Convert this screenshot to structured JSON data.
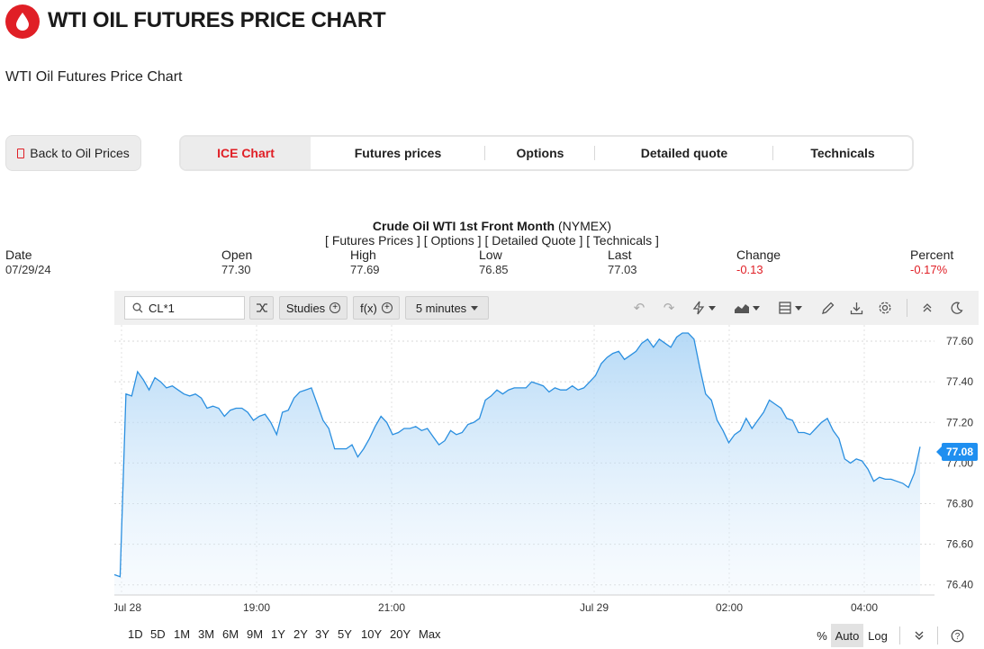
{
  "header": {
    "title": "WTI OIL FUTURES PRICE CHART",
    "subtitle": "WTI Oil Futures Price Chart",
    "logo_icon": "oil-drop-icon",
    "brand_color": "#e01f26"
  },
  "nav": {
    "back_label": "Back to Oil Prices",
    "tabs": [
      {
        "label": "ICE Chart",
        "active": true
      },
      {
        "label": "Futures prices",
        "active": false
      },
      {
        "label": "Options",
        "active": false
      },
      {
        "label": "Detailed quote",
        "active": false
      },
      {
        "label": "Technicals",
        "active": false
      }
    ]
  },
  "quote": {
    "title_bold": "Crude Oil WTI 1st Front Month",
    "title_exchange": "(NYMEX)",
    "links": "[ Futures Prices ] [ Options ] [ Detailed Quote ] [ Technicals ]",
    "labels": {
      "date": "Date",
      "open": "Open",
      "high": "High",
      "low": "Low",
      "last": "Last",
      "change": "Change",
      "percent": "Percent"
    },
    "values": {
      "date": "07/29/24",
      "open": "77.30",
      "high": "77.69",
      "low": "76.85",
      "last": "77.03",
      "change": "-0.13",
      "percent": "-0.17%"
    }
  },
  "toolbar": {
    "symbol": "CL*1",
    "studies_label": "Studies",
    "fx_label": "f(x)",
    "interval_label": "5 minutes",
    "icons": [
      "search-icon",
      "shuffle-icon",
      "undo-icon",
      "redo-icon",
      "lightning-icon",
      "chart-type-icon",
      "layout-icon",
      "pencil-icon",
      "download-icon",
      "gear-icon",
      "collapse-icon",
      "moon-icon"
    ]
  },
  "range_bar": {
    "ranges": [
      "1D",
      "5D",
      "1M",
      "3M",
      "6M",
      "9M",
      "1Y",
      "2Y",
      "3Y",
      "5Y",
      "10Y",
      "20Y",
      "Max"
    ],
    "scales": [
      "%",
      "Auto",
      "Log"
    ],
    "active_scale": "Auto"
  },
  "chart_data": {
    "type": "area",
    "x_tick_labels": [
      "Jul 28",
      "19:00",
      "21:00",
      "Jul 29",
      "02:00",
      "04:00"
    ],
    "y_ticks": [
      77.6,
      77.4,
      77.2,
      77.0,
      76.8,
      76.6,
      76.4
    ],
    "ylim": [
      76.35,
      77.68
    ],
    "last_value": "77.08",
    "line_color": "#2a8fe0",
    "grid": true,
    "series": [
      {
        "values": [
          76.45,
          76.44,
          77.34,
          77.33,
          77.45,
          77.41,
          77.36,
          77.42,
          77.4,
          77.37,
          77.38,
          77.36,
          77.34,
          77.33,
          77.34,
          77.32,
          77.27,
          77.28,
          77.27,
          77.23,
          77.26,
          77.27,
          77.27,
          77.25,
          77.21,
          77.23,
          77.24,
          77.2,
          77.14,
          77.25,
          77.26,
          77.32,
          77.35,
          77.36,
          77.37,
          77.29,
          77.21,
          77.17,
          77.07,
          77.07,
          77.07,
          77.09,
          77.03,
          77.07,
          77.12,
          77.18,
          77.23,
          77.2,
          77.14,
          77.15,
          77.17,
          77.17,
          77.18,
          77.16,
          77.17,
          77.13,
          77.09,
          77.11,
          77.16,
          77.14,
          77.15,
          77.19,
          77.2,
          77.22,
          77.31,
          77.33,
          77.36,
          77.34,
          77.36,
          77.37,
          77.37,
          77.37,
          77.4,
          77.39,
          77.38,
          77.35,
          77.37,
          77.36,
          77.36,
          77.38,
          77.36,
          77.37,
          77.4,
          77.43,
          77.49,
          77.52,
          77.54,
          77.55,
          77.51,
          77.53,
          77.55,
          77.59,
          77.61,
          77.57,
          77.61,
          77.59,
          77.57,
          77.62,
          77.64,
          77.64,
          77.61,
          77.47,
          77.34,
          77.31,
          77.21,
          77.16,
          77.1,
          77.14,
          77.16,
          77.22,
          77.17,
          77.21,
          77.25,
          77.31,
          77.29,
          77.27,
          77.22,
          77.21,
          77.15,
          77.15,
          77.14,
          77.17,
          77.2,
          77.22,
          77.16,
          77.12,
          77.02,
          77.0,
          77.02,
          77.01,
          76.97,
          76.91,
          76.93,
          76.92,
          76.92,
          76.91,
          76.9,
          76.88,
          76.95,
          77.08
        ]
      }
    ]
  }
}
